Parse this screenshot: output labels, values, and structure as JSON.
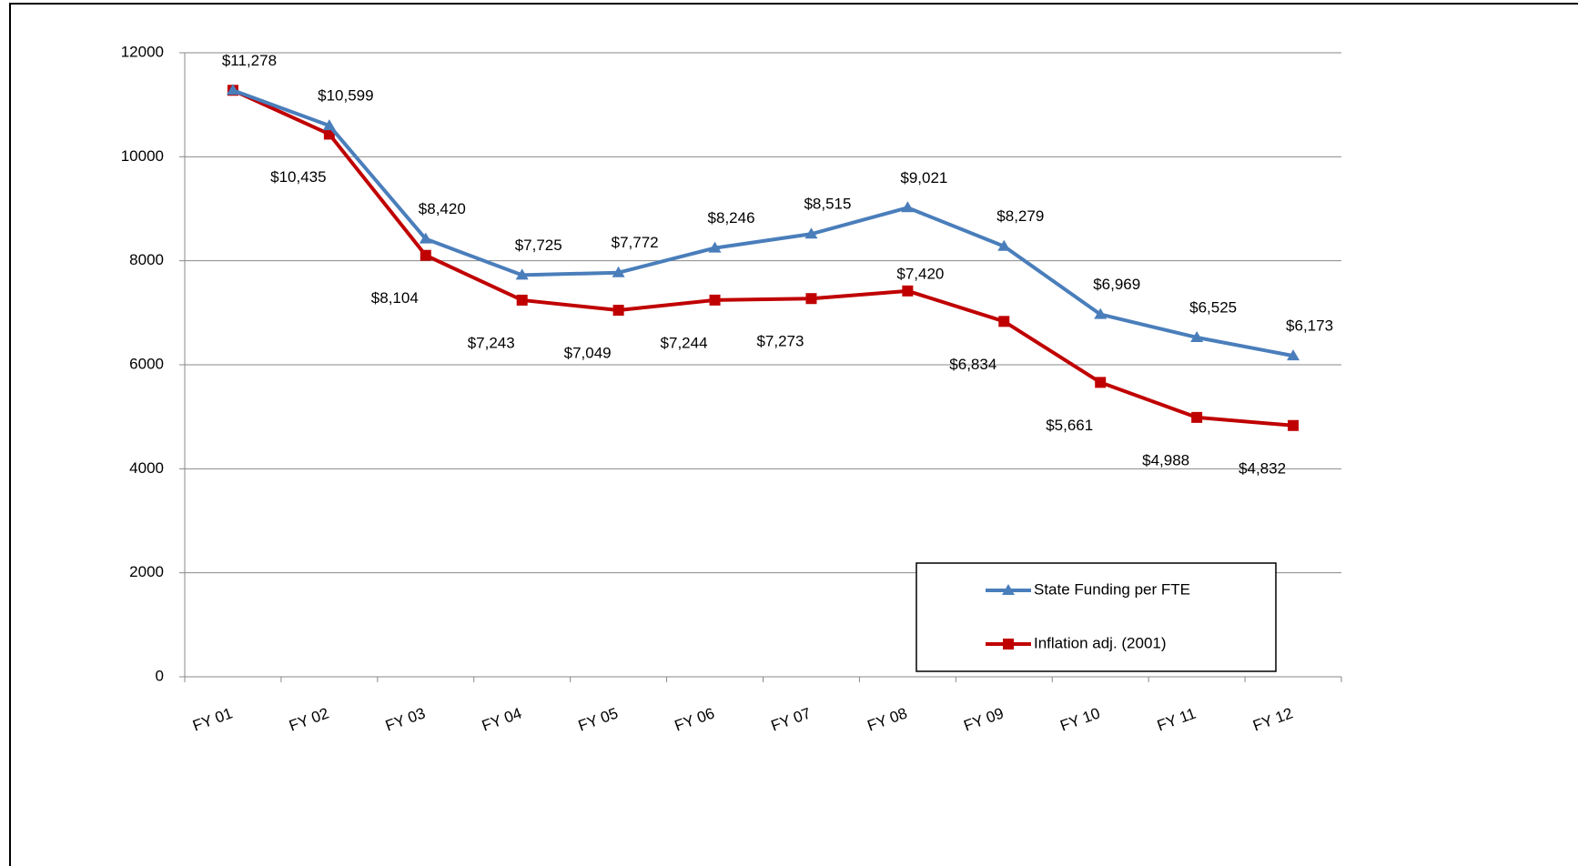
{
  "chart_data": {
    "type": "line",
    "categories": [
      "FY 01",
      "FY 02",
      "FY 03",
      "FY 04",
      "FY 05",
      "FY 06",
      "FY 07",
      "FY 08",
      "FY 09",
      "FY 10",
      "FY 11",
      "FY 12"
    ],
    "series": [
      {
        "name": "State Funding per FTE",
        "color": "#4a7ebb",
        "marker": "triangle",
        "values": [
          11278,
          10599,
          8420,
          7725,
          7772,
          8246,
          8515,
          9021,
          8279,
          6969,
          6525,
          6173
        ],
        "value_labels": [
          "$11,278",
          "$10,599",
          "$8,420",
          "$7,725",
          "$7,772",
          "$8,246",
          "$8,515",
          "$9,021",
          "$8,279",
          "$6,969",
          "$6,525",
          "$6,173"
        ]
      },
      {
        "name": "Inflation adj. (2001)",
        "color": "#c00000",
        "marker": "square",
        "values": [
          11278,
          10435,
          8104,
          7243,
          7049,
          7244,
          7273,
          7420,
          6834,
          5661,
          4988,
          4832
        ],
        "value_labels": [
          null,
          "$10,435",
          "$8,104",
          "$7,243",
          "$7,049",
          "$7,244",
          "$7,273",
          "$7,420",
          "$6,834",
          "$5,661",
          "$4,988",
          "$4,832"
        ]
      }
    ],
    "ylim": [
      0,
      12000
    ],
    "yticks": [
      0,
      2000,
      4000,
      6000,
      8000,
      10000,
      12000
    ],
    "grid": true,
    "legend": "lower right"
  }
}
